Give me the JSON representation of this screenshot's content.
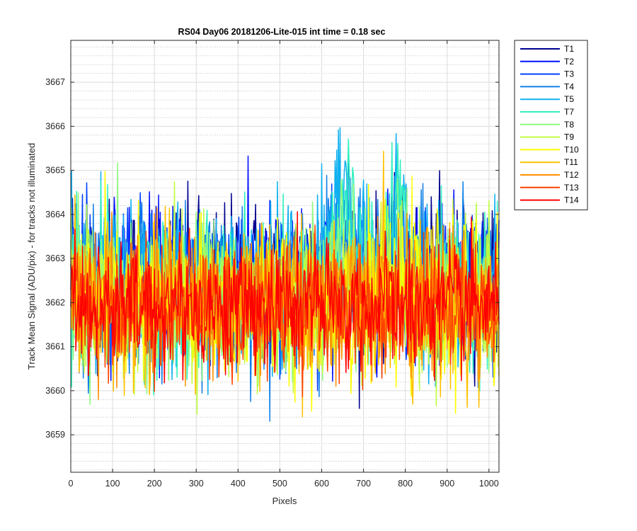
{
  "chart_data": {
    "type": "line",
    "title": "RS04 Day06 20181206-Lite-015 int time = 0.18 sec",
    "xlabel": "Pixels",
    "ylabel": "Track Mean Signal (ADU/pix) - for tracks not illuminated",
    "xlim": [
      0,
      1024
    ],
    "ylim": [
      3658.15,
      3667.95
    ],
    "xticks": [
      0,
      100,
      200,
      300,
      400,
      500,
      600,
      700,
      800,
      900,
      1000
    ],
    "yticks": [
      3659,
      3660,
      3661,
      3662,
      3663,
      3664,
      3665,
      3666,
      3667
    ],
    "grid": true,
    "minor_grid": true,
    "legend_position": "outside-top-right",
    "series": [
      {
        "name": "T1",
        "color": "#00008f",
        "baseline": 3662.6,
        "amp": 1.15,
        "hump": 0.0
      },
      {
        "name": "T2",
        "color": "#0010ff",
        "baseline": 3662.5,
        "amp": 1.15,
        "hump": 0.0
      },
      {
        "name": "T3",
        "color": "#0040ff",
        "baseline": 3662.4,
        "amp": 1.15,
        "hump": 0.4
      },
      {
        "name": "T4",
        "color": "#1080e8",
        "baseline": 3662.3,
        "amp": 1.2,
        "hump": 1.4
      },
      {
        "name": "T5",
        "color": "#10b0f0",
        "baseline": 3662.3,
        "amp": 1.2,
        "hump": 2.0
      },
      {
        "name": "T7",
        "color": "#30f0c0",
        "baseline": 3662.2,
        "amp": 1.2,
        "hump": 2.2
      },
      {
        "name": "T8",
        "color": "#90f880",
        "baseline": 3662.1,
        "amp": 1.15,
        "hump": 0.8
      },
      {
        "name": "T9",
        "color": "#c0ff40",
        "baseline": 3662.0,
        "amp": 1.15,
        "hump": 0.3
      },
      {
        "name": "T10",
        "color": "#ffff00",
        "baseline": 3662.0,
        "amp": 1.2,
        "hump": 0.0
      },
      {
        "name": "T11",
        "color": "#ffc000",
        "baseline": 3661.9,
        "amp": 1.1,
        "hump": 0.0
      },
      {
        "name": "T12",
        "color": "#ff9000",
        "baseline": 3662.0,
        "amp": 1.05,
        "hump": 0.0
      },
      {
        "name": "T13",
        "color": "#ff4000",
        "baseline": 3661.9,
        "amp": 1.0,
        "hump": 0.0
      },
      {
        "name": "T14",
        "color": "#ff0000",
        "baseline": 3661.9,
        "amp": 0.95,
        "hump": 0.0
      }
    ]
  }
}
